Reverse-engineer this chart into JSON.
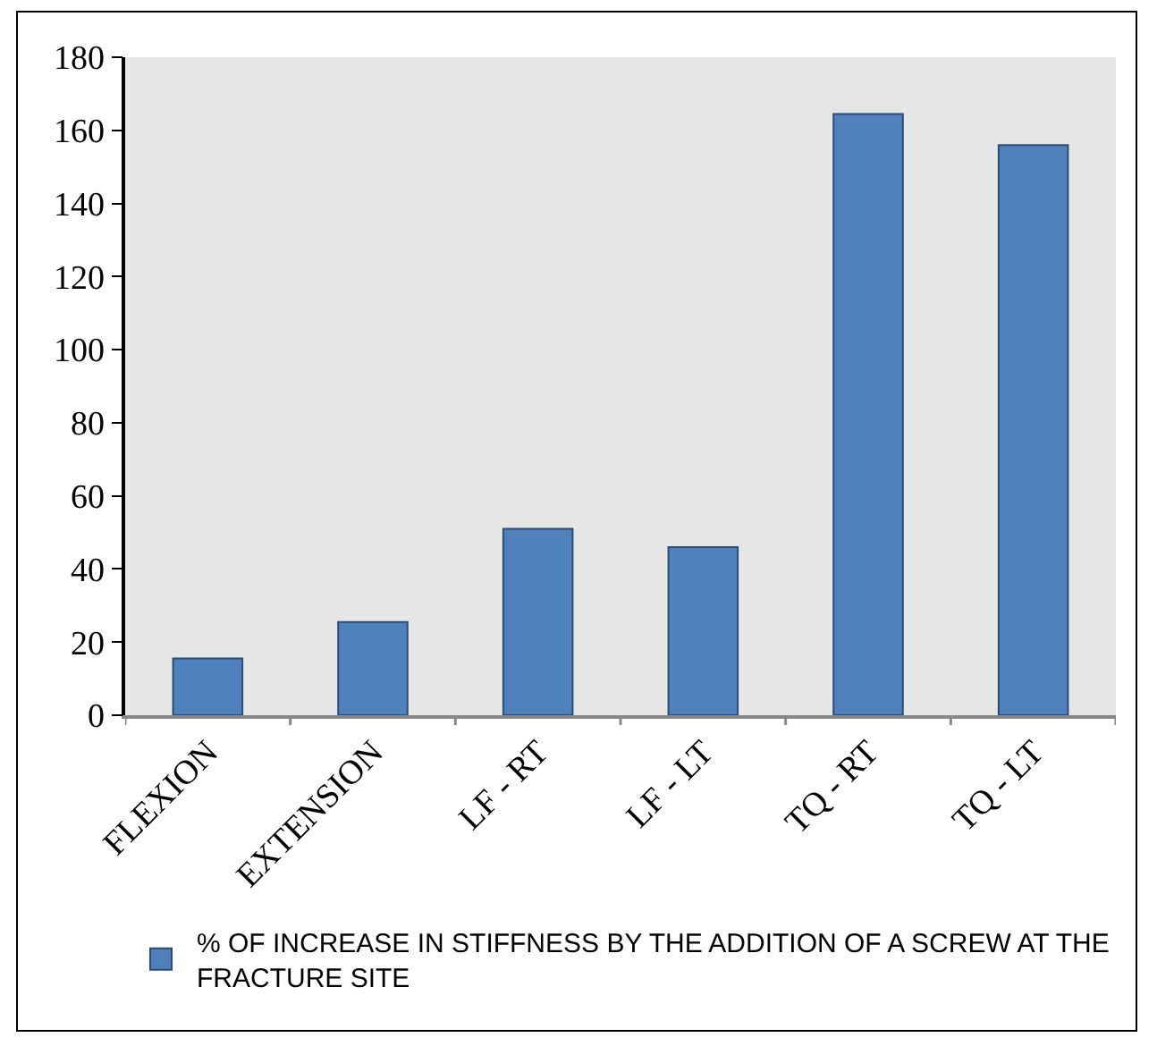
{
  "chart_data": {
    "type": "bar",
    "categories": [
      "FLEXION",
      "EXTENSION",
      "LF - RT",
      "LF - LT",
      "TQ - RT",
      "TQ - LT"
    ],
    "series": [
      {
        "name": "% OF INCREASE IN STIFFNESS BY THE ADDITION OF A SCREW AT THE FRACTURE SITE",
        "color": "#4f81bd",
        "values": [
          15.5,
          25.5,
          51,
          46,
          164.5,
          156
        ]
      }
    ],
    "ylim": [
      0,
      180
    ],
    "yticks": [
      0,
      20,
      40,
      60,
      80,
      100,
      120,
      140,
      160,
      180
    ],
    "grid": false,
    "legend": "bottom"
  }
}
